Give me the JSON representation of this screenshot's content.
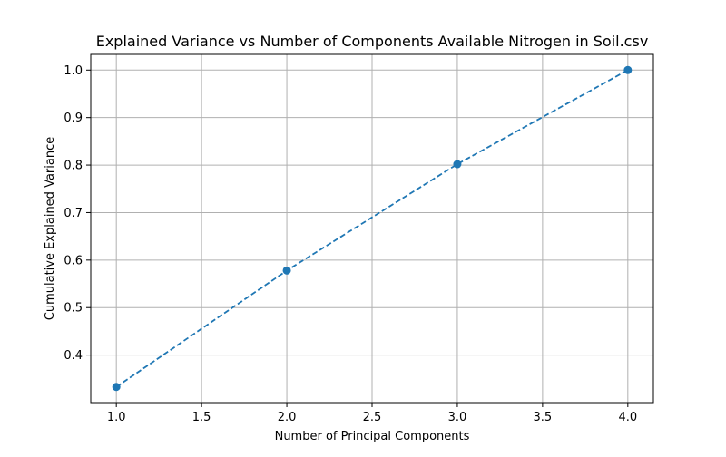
{
  "chart_data": {
    "type": "line",
    "title": "Explained Variance vs Number of Components Available Nitrogen in Soil.csv",
    "xlabel": "Number of Principal Components",
    "ylabel": "Cumulative Explained Variance",
    "x": [
      1,
      2,
      3,
      4
    ],
    "series": [
      {
        "values": [
          0.333,
          0.578,
          0.802,
          1.0
        ],
        "color": "#1f77b4",
        "line_style": "dashed",
        "marker": "circle"
      }
    ],
    "xlim": [
      0.85,
      4.15
    ],
    "ylim": [
      0.3,
      1.033
    ],
    "x_ticks": [
      1.0,
      1.5,
      2.0,
      2.5,
      3.0,
      3.5,
      4.0
    ],
    "x_tick_labels": [
      "1.0",
      "1.5",
      "2.0",
      "2.5",
      "3.0",
      "3.5",
      "4.0"
    ],
    "y_ticks": [
      0.4,
      0.5,
      0.6,
      0.7,
      0.8,
      0.9,
      1.0
    ],
    "y_tick_labels": [
      "0.4",
      "0.5",
      "0.6",
      "0.7",
      "0.8",
      "0.9",
      "1.0"
    ],
    "grid": true,
    "legend": "none"
  }
}
